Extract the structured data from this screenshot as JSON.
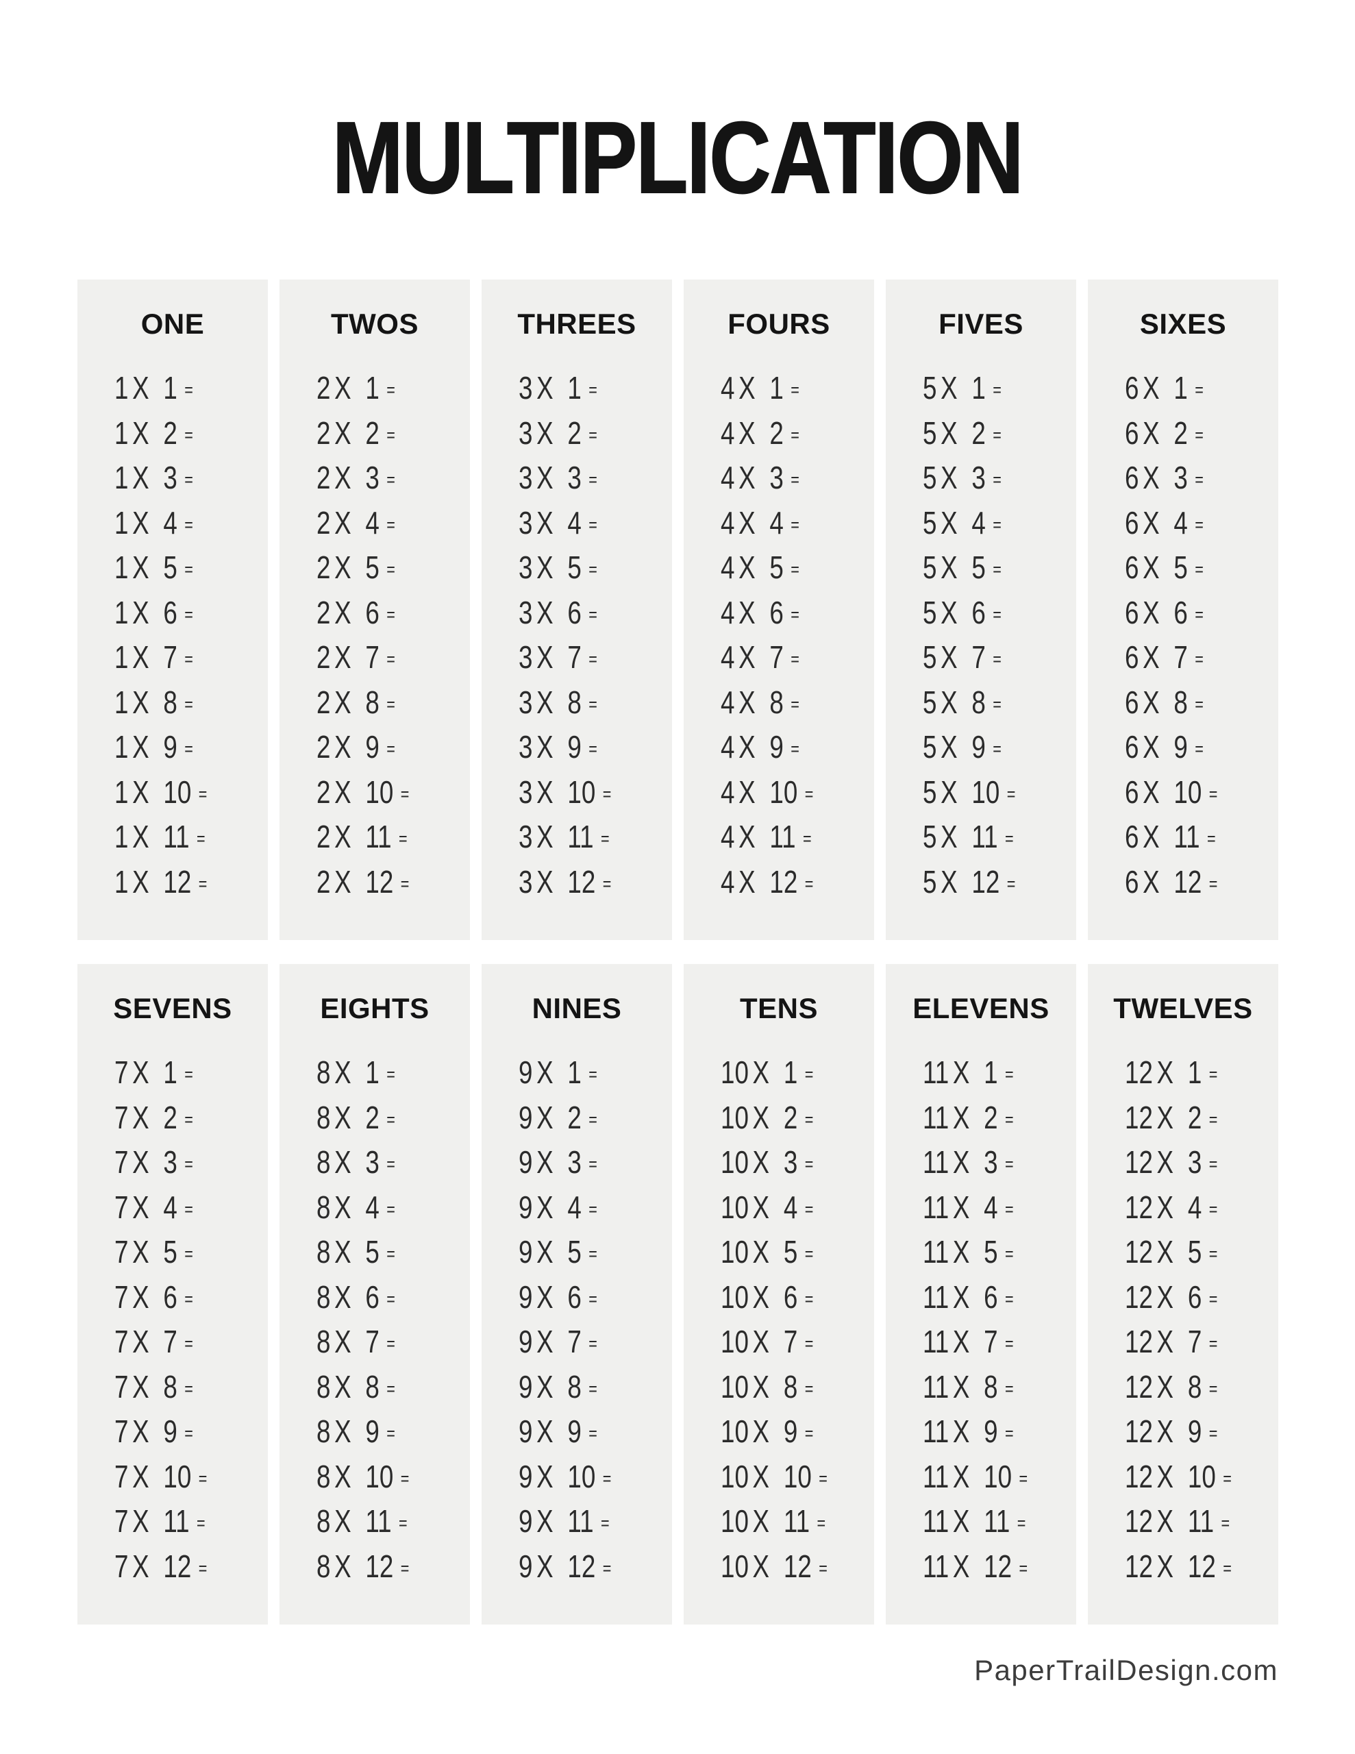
{
  "title": "MULTIPLICATION",
  "operator_label": "X",
  "equals_label": "=",
  "operands": [
    "1",
    "2",
    "3",
    "4",
    "5",
    "6",
    "7",
    "8",
    "9",
    "10",
    "11",
    "12"
  ],
  "groups": [
    {
      "columns": [
        {
          "header": "ONE",
          "multiplicand": "1"
        },
        {
          "header": "TWOS",
          "multiplicand": "2"
        },
        {
          "header": "THREES",
          "multiplicand": "3"
        },
        {
          "header": "FOURS",
          "multiplicand": "4"
        },
        {
          "header": "FIVES",
          "multiplicand": "5"
        },
        {
          "header": "SIXES",
          "multiplicand": "6"
        }
      ]
    },
    {
      "columns": [
        {
          "header": "SEVENS",
          "multiplicand": "7"
        },
        {
          "header": "EIGHTS",
          "multiplicand": "8"
        },
        {
          "header": "NINES",
          "multiplicand": "9"
        },
        {
          "header": "TENS",
          "multiplicand": "10"
        },
        {
          "header": "ELEVENS",
          "multiplicand": "11"
        },
        {
          "header": "TWELVES",
          "multiplicand": "12"
        }
      ]
    }
  ],
  "footer": {
    "credit": "PaperTrailDesign.com"
  },
  "colors": {
    "page_bg": "#ffffff",
    "panel_bg": "#f0f0ee",
    "cell_text": "#2b2b2b",
    "heading_text": "#141414",
    "footer_text": "#3c3c3c"
  }
}
